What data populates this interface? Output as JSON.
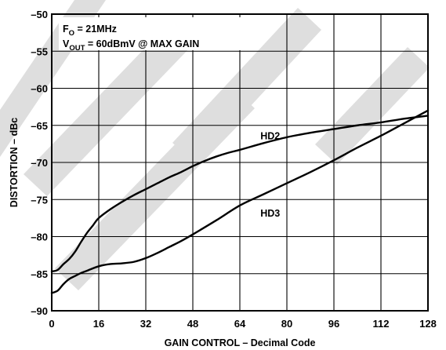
{
  "chart_data": {
    "type": "line",
    "xlabel": "GAIN CONTROL – Decimal Code",
    "ylabel": "DISTORTION – dBc",
    "xlim": [
      0,
      128
    ],
    "ylim": [
      -90,
      -50
    ],
    "xticks": [
      "0",
      "16",
      "32",
      "48",
      "64",
      "80",
      "96",
      "112",
      "128"
    ],
    "yticks": [
      "–50",
      "–55",
      "–60",
      "–65",
      "–70",
      "–75",
      "–80",
      "–85",
      "–90"
    ],
    "grid": true,
    "annotation": {
      "f_main": "F",
      "f_sub": "O",
      "f_value": " = 21MHz",
      "v_main": "V",
      "v_sub": "OUT",
      "v_value": " = 60dBmV @ MAX GAIN"
    },
    "series": [
      {
        "name": "HD2",
        "x": [
          0,
          2,
          4,
          6,
          8,
          10,
          12,
          14,
          16,
          20,
          24,
          28,
          32,
          36,
          40,
          44,
          48,
          52,
          56,
          60,
          64,
          72,
          80,
          88,
          96,
          104,
          112,
          120,
          128
        ],
        "y": [
          -84.7,
          -84.5,
          -83.7,
          -83.0,
          -82.0,
          -80.7,
          -79.5,
          -78.5,
          -77.5,
          -76.3,
          -75.3,
          -74.4,
          -73.6,
          -72.8,
          -72.0,
          -71.3,
          -70.5,
          -69.8,
          -69.2,
          -68.7,
          -68.3,
          -67.4,
          -66.6,
          -66.0,
          -65.5,
          -65.0,
          -64.6,
          -64.1,
          -63.7
        ]
      },
      {
        "name": "HD3",
        "x": [
          0,
          2,
          4,
          6,
          8,
          10,
          12,
          16,
          20,
          24,
          28,
          32,
          36,
          40,
          44,
          48,
          56,
          64,
          72,
          80,
          88,
          96,
          104,
          112,
          120,
          128
        ],
        "y": [
          -87.6,
          -87.3,
          -86.4,
          -85.7,
          -85.3,
          -84.9,
          -84.6,
          -84.0,
          -83.7,
          -83.6,
          -83.4,
          -82.9,
          -82.2,
          -81.4,
          -80.6,
          -79.7,
          -77.8,
          -75.8,
          -74.3,
          -72.8,
          -71.3,
          -69.7,
          -68.0,
          -66.4,
          -64.7,
          -63.0
        ]
      }
    ]
  }
}
